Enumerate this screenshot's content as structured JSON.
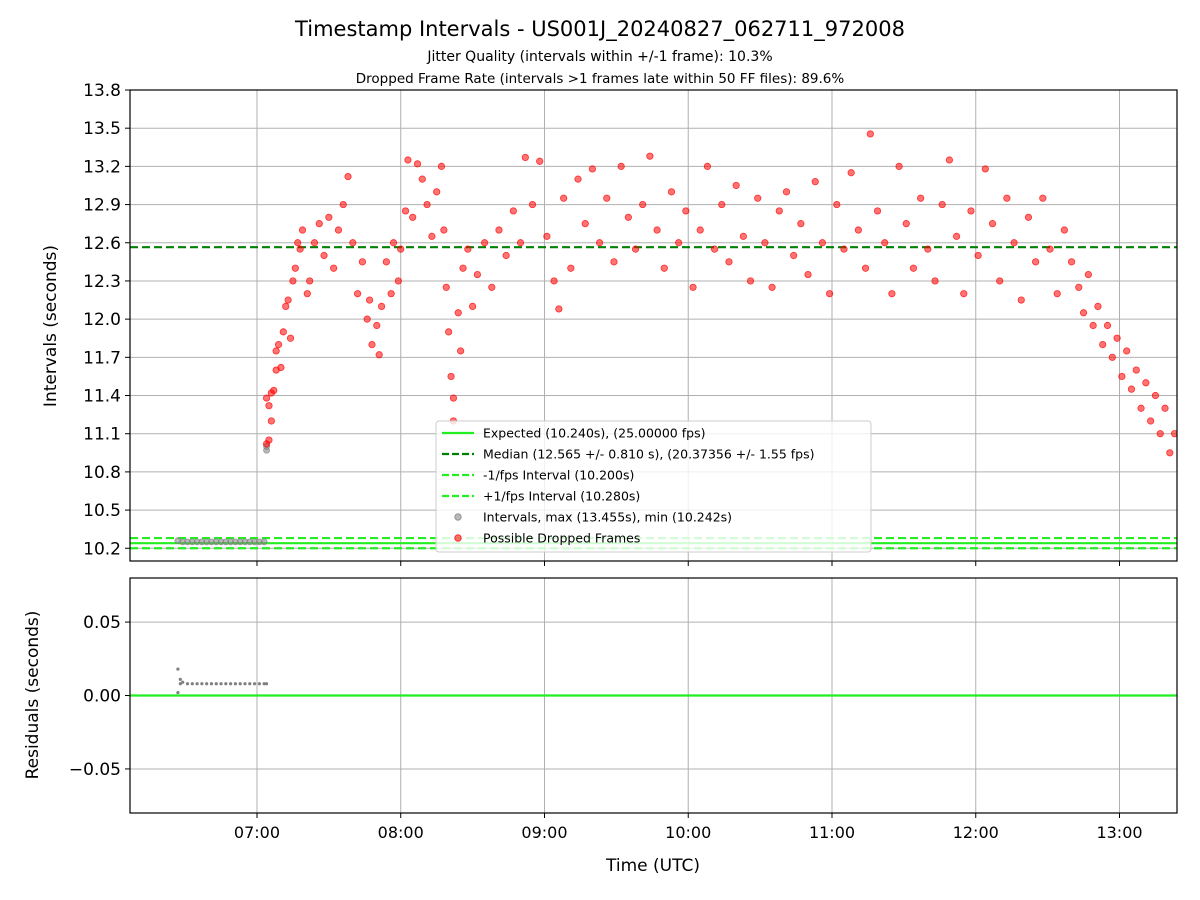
{
  "title": "Timestamp Intervals - US001J_20240827_062711_972008",
  "subtitle1": "Jitter Quality (intervals within +/-1 frame): 10.3%",
  "subtitle2": "Dropped Frame Rate (intervals >1 frames late within 50 FF files): 89.6%",
  "colors": {
    "expected": "#22ee22",
    "median": "#008000",
    "fps_band": "#22ee22",
    "intervals": "#808080",
    "dropped": "#ff0000",
    "grid": "#b0b0b0"
  },
  "chart_data": [
    {
      "type": "scatter",
      "panel": "top",
      "ylabel": "Intervals (seconds)",
      "xlim": [
        "06:07",
        "13:24"
      ],
      "ylim": [
        10.1,
        13.8
      ],
      "yticks": [
        "10.2",
        "10.5",
        "10.8",
        "11.1",
        "11.4",
        "11.7",
        "12.0",
        "12.3",
        "12.6",
        "12.9",
        "13.2",
        "13.5",
        "13.8"
      ],
      "grid": true,
      "legend_position": "lower-center",
      "reference_lines": [
        {
          "name": "Expected (10.240s), (25.00000 fps)",
          "value": 10.24,
          "style": "solid",
          "color": "#22ee22"
        },
        {
          "name": "Median (12.565 +/- 0.810 s), (20.37356 +/- 1.55 fps)",
          "value": 12.565,
          "style": "dashed",
          "color": "#008000"
        },
        {
          "name": "-1/fps Interval (10.200s)",
          "value": 10.2,
          "style": "dashed",
          "color": "#22ee22"
        },
        {
          "name": "+1/fps Interval (10.280s)",
          "value": 10.28,
          "style": "dashed",
          "color": "#22ee22"
        }
      ],
      "series": [
        {
          "name": "Intervals, max (13.455s), min (10.242s)",
          "color": "#808080",
          "points": [
            [
              "06:27",
              10.26
            ],
            [
              "06:29",
              10.25
            ],
            [
              "06:31",
              10.25
            ],
            [
              "06:33",
              10.25
            ],
            [
              "06:35",
              10.25
            ],
            [
              "06:37",
              10.25
            ],
            [
              "06:39",
              10.25
            ],
            [
              "06:41",
              10.25
            ],
            [
              "06:43",
              10.25
            ],
            [
              "06:45",
              10.25
            ],
            [
              "06:47",
              10.25
            ],
            [
              "06:49",
              10.25
            ],
            [
              "06:51",
              10.25
            ],
            [
              "06:53",
              10.25
            ],
            [
              "06:55",
              10.25
            ],
            [
              "06:57",
              10.25
            ],
            [
              "06:59",
              10.25
            ],
            [
              "07:01",
              10.25
            ],
            [
              "07:03",
              10.25
            ],
            [
              "07:04",
              10.97
            ],
            [
              "07:04",
              11.0
            ]
          ]
        },
        {
          "name": "Possible Dropped Frames",
          "color": "#ff0000",
          "points": [
            [
              "07:04",
              11.02
            ],
            [
              "07:05",
              11.05
            ],
            [
              "07:04",
              11.38
            ],
            [
              "07:05",
              11.32
            ],
            [
              "07:06",
              11.2
            ],
            [
              "07:06",
              11.42
            ],
            [
              "07:07",
              11.44
            ],
            [
              "07:08",
              11.6
            ],
            [
              "07:08",
              11.75
            ],
            [
              "07:09",
              11.8
            ],
            [
              "07:10",
              11.62
            ],
            [
              "07:11",
              11.9
            ],
            [
              "07:12",
              12.1
            ],
            [
              "07:13",
              12.15
            ],
            [
              "07:14",
              11.85
            ],
            [
              "07:15",
              12.3
            ],
            [
              "07:16",
              12.4
            ],
            [
              "07:17",
              12.6
            ],
            [
              "07:18",
              12.55
            ],
            [
              "07:19",
              12.7
            ],
            [
              "07:21",
              12.2
            ],
            [
              "07:22",
              12.3
            ],
            [
              "07:24",
              12.6
            ],
            [
              "07:26",
              12.75
            ],
            [
              "07:28",
              12.5
            ],
            [
              "07:30",
              12.8
            ],
            [
              "07:32",
              12.4
            ],
            [
              "07:34",
              12.7
            ],
            [
              "07:36",
              12.9
            ],
            [
              "07:38",
              13.12
            ],
            [
              "07:40",
              12.6
            ],
            [
              "07:42",
              12.2
            ],
            [
              "07:44",
              12.45
            ],
            [
              "07:46",
              12.0
            ],
            [
              "07:47",
              12.15
            ],
            [
              "07:48",
              11.8
            ],
            [
              "07:50",
              11.95
            ],
            [
              "07:51",
              11.72
            ],
            [
              "07:52",
              12.1
            ],
            [
              "07:54",
              12.45
            ],
            [
              "07:56",
              12.2
            ],
            [
              "07:57",
              12.6
            ],
            [
              "07:59",
              12.3
            ],
            [
              "08:00",
              12.55
            ],
            [
              "08:02",
              12.85
            ],
            [
              "08:03",
              13.25
            ],
            [
              "08:05",
              12.8
            ],
            [
              "08:07",
              13.22
            ],
            [
              "08:09",
              13.1
            ],
            [
              "08:11",
              12.9
            ],
            [
              "08:13",
              12.65
            ],
            [
              "08:15",
              13.0
            ],
            [
              "08:17",
              13.2
            ],
            [
              "08:18",
              12.7
            ],
            [
              "08:19",
              12.25
            ],
            [
              "08:20",
              11.9
            ],
            [
              "08:21",
              11.55
            ],
            [
              "08:22",
              11.38
            ],
            [
              "08:22",
              11.2
            ],
            [
              "08:24",
              12.05
            ],
            [
              "08:25",
              11.75
            ],
            [
              "08:26",
              12.4
            ],
            [
              "08:28",
              12.55
            ],
            [
              "08:30",
              12.1
            ],
            [
              "08:32",
              12.35
            ],
            [
              "08:35",
              12.6
            ],
            [
              "08:38",
              12.25
            ],
            [
              "08:41",
              12.7
            ],
            [
              "08:44",
              12.5
            ],
            [
              "08:47",
              12.85
            ],
            [
              "08:50",
              12.6
            ],
            [
              "08:52",
              13.27
            ],
            [
              "08:55",
              12.9
            ],
            [
              "08:58",
              13.24
            ],
            [
              "09:01",
              12.65
            ],
            [
              "09:04",
              12.3
            ],
            [
              "09:06",
              12.08
            ],
            [
              "09:08",
              12.95
            ],
            [
              "09:11",
              12.4
            ],
            [
              "09:14",
              13.1
            ],
            [
              "09:17",
              12.75
            ],
            [
              "09:20",
              13.18
            ],
            [
              "09:23",
              12.6
            ],
            [
              "09:26",
              12.95
            ],
            [
              "09:29",
              12.45
            ],
            [
              "09:32",
              13.2
            ],
            [
              "09:35",
              12.8
            ],
            [
              "09:38",
              12.55
            ],
            [
              "09:41",
              12.9
            ],
            [
              "09:44",
              13.28
            ],
            [
              "09:47",
              12.7
            ],
            [
              "09:50",
              12.4
            ],
            [
              "09:53",
              13.0
            ],
            [
              "09:56",
              12.6
            ],
            [
              "09:59",
              12.85
            ],
            [
              "10:02",
              12.25
            ],
            [
              "10:05",
              12.7
            ],
            [
              "10:08",
              13.2
            ],
            [
              "10:11",
              12.55
            ],
            [
              "10:14",
              12.9
            ],
            [
              "10:17",
              12.45
            ],
            [
              "10:20",
              13.05
            ],
            [
              "10:23",
              12.65
            ],
            [
              "10:26",
              12.3
            ],
            [
              "10:29",
              12.95
            ],
            [
              "10:32",
              12.6
            ],
            [
              "10:35",
              12.25
            ],
            [
              "10:38",
              12.85
            ],
            [
              "10:41",
              13.0
            ],
            [
              "10:44",
              12.5
            ],
            [
              "10:47",
              12.75
            ],
            [
              "10:50",
              12.35
            ],
            [
              "10:53",
              13.08
            ],
            [
              "10:56",
              12.6
            ],
            [
              "10:59",
              12.2
            ],
            [
              "11:02",
              12.9
            ],
            [
              "11:05",
              12.55
            ],
            [
              "11:08",
              13.15
            ],
            [
              "11:11",
              12.7
            ],
            [
              "11:14",
              12.4
            ],
            [
              "11:16",
              13.455
            ],
            [
              "11:19",
              12.85
            ],
            [
              "11:22",
              12.6
            ],
            [
              "11:25",
              12.2
            ],
            [
              "11:28",
              13.2
            ],
            [
              "11:31",
              12.75
            ],
            [
              "11:34",
              12.4
            ],
            [
              "11:37",
              12.95
            ],
            [
              "11:40",
              12.55
            ],
            [
              "11:43",
              12.3
            ],
            [
              "11:46",
              12.9
            ],
            [
              "11:49",
              13.25
            ],
            [
              "11:52",
              12.65
            ],
            [
              "11:55",
              12.2
            ],
            [
              "11:58",
              12.85
            ],
            [
              "12:01",
              12.5
            ],
            [
              "12:04",
              13.18
            ],
            [
              "12:07",
              12.75
            ],
            [
              "12:10",
              12.3
            ],
            [
              "12:13",
              12.95
            ],
            [
              "12:16",
              12.6
            ],
            [
              "12:19",
              12.15
            ],
            [
              "12:22",
              12.8
            ],
            [
              "12:25",
              12.45
            ],
            [
              "12:28",
              12.95
            ],
            [
              "12:31",
              12.55
            ],
            [
              "12:34",
              12.2
            ],
            [
              "12:37",
              12.7
            ],
            [
              "12:40",
              12.45
            ],
            [
              "12:43",
              12.25
            ],
            [
              "12:45",
              12.05
            ],
            [
              "12:47",
              12.35
            ],
            [
              "12:49",
              11.95
            ],
            [
              "12:51",
              12.1
            ],
            [
              "12:53",
              11.8
            ],
            [
              "12:55",
              11.95
            ],
            [
              "12:57",
              11.7
            ],
            [
              "12:59",
              11.85
            ],
            [
              "13:01",
              11.55
            ],
            [
              "13:03",
              11.75
            ],
            [
              "13:05",
              11.45
            ],
            [
              "13:07",
              11.6
            ],
            [
              "13:09",
              11.3
            ],
            [
              "13:11",
              11.5
            ],
            [
              "13:13",
              11.2
            ],
            [
              "13:15",
              11.4
            ],
            [
              "13:17",
              11.1
            ],
            [
              "13:19",
              11.3
            ],
            [
              "13:21",
              10.95
            ],
            [
              "13:23",
              11.1
            ]
          ]
        }
      ]
    },
    {
      "type": "scatter",
      "panel": "bottom",
      "xlabel": "Time (UTC)",
      "ylabel": "Residuals (seconds)",
      "xlim": [
        "06:07",
        "13:24"
      ],
      "ylim": [
        -0.08,
        0.08
      ],
      "yticks": [
        "−0.05",
        "0.00",
        "0.05"
      ],
      "xticks": [
        "07:00",
        "08:00",
        "09:00",
        "10:00",
        "11:00",
        "12:00",
        "13:00"
      ],
      "grid": true,
      "reference_lines": [
        {
          "value": 0.0,
          "style": "solid",
          "color": "#22ee22"
        }
      ],
      "series": [
        {
          "name": "",
          "color": "#808080",
          "points": [
            [
              "06:27",
              0.018
            ],
            [
              "06:27",
              0.002
            ],
            [
              "06:28",
              0.011
            ],
            [
              "06:28",
              0.008
            ],
            [
              "06:29",
              0.009
            ],
            [
              "06:31",
              0.008
            ],
            [
              "06:33",
              0.008
            ],
            [
              "06:35",
              0.008
            ],
            [
              "06:37",
              0.008
            ],
            [
              "06:39",
              0.008
            ],
            [
              "06:41",
              0.008
            ],
            [
              "06:43",
              0.008
            ],
            [
              "06:45",
              0.008
            ],
            [
              "06:47",
              0.008
            ],
            [
              "06:49",
              0.008
            ],
            [
              "06:51",
              0.008
            ],
            [
              "06:53",
              0.008
            ],
            [
              "06:55",
              0.008
            ],
            [
              "06:57",
              0.008
            ],
            [
              "06:59",
              0.008
            ],
            [
              "07:01",
              0.008
            ],
            [
              "07:03",
              0.008
            ],
            [
              "07:04",
              0.008
            ]
          ]
        }
      ]
    }
  ]
}
